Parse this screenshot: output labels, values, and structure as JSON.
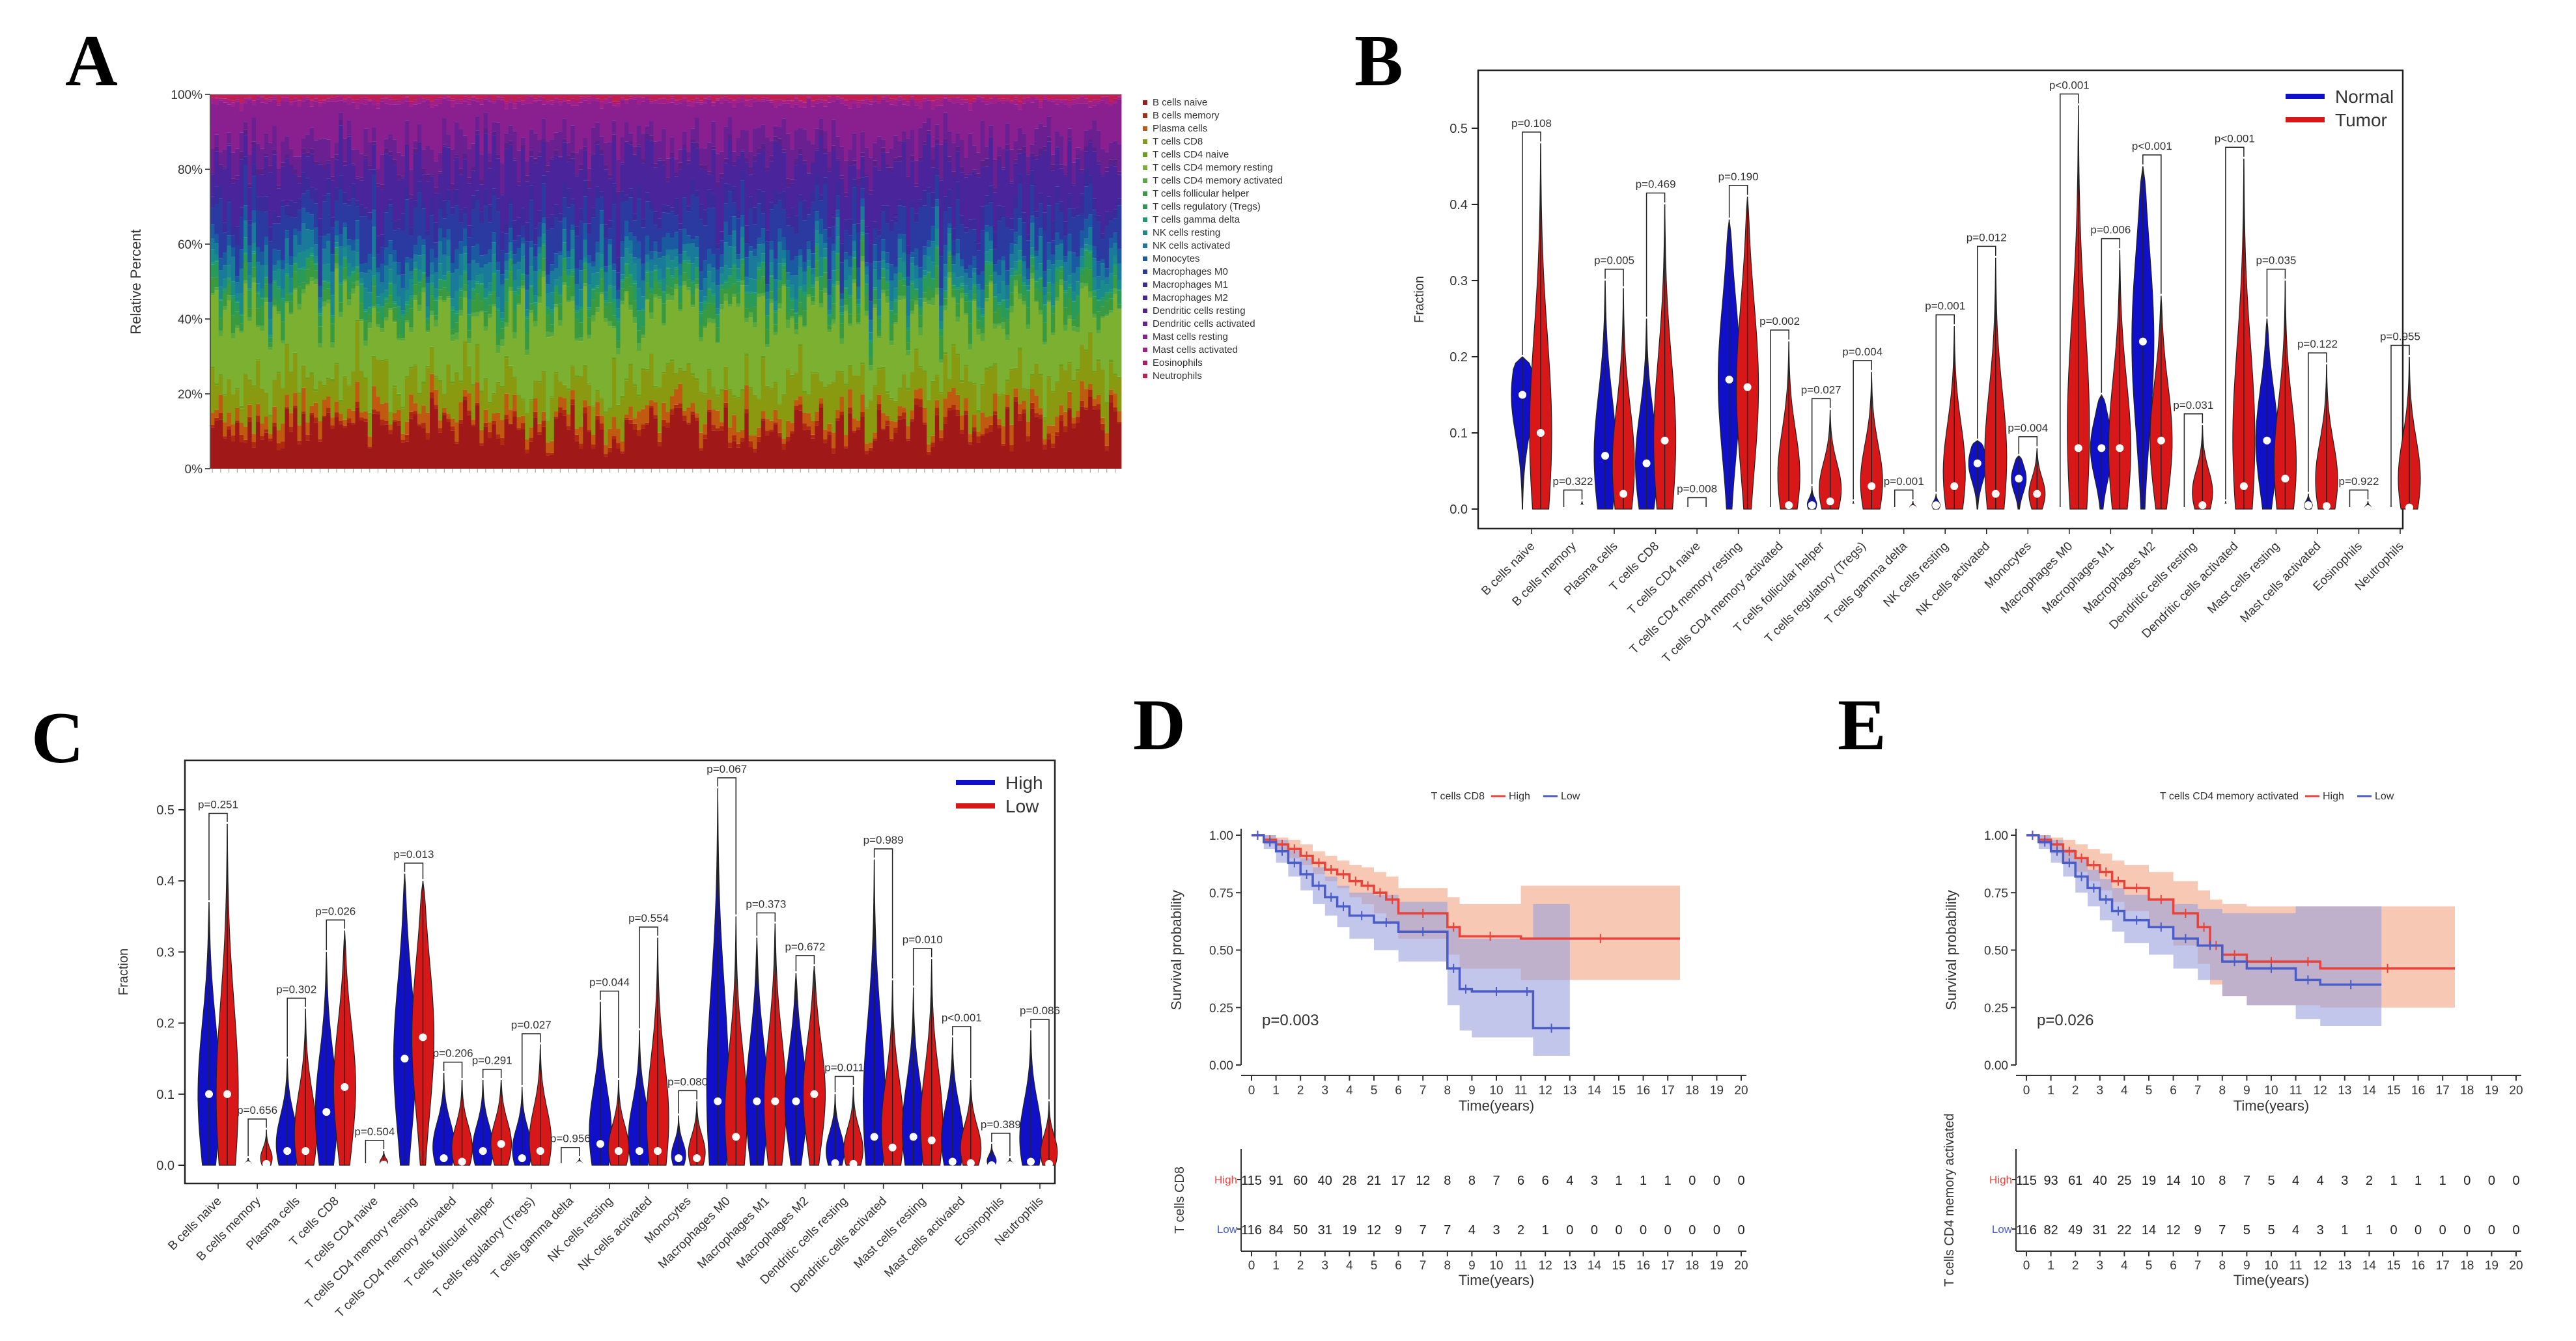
{
  "panel_labels": {
    "a": "A",
    "b": "B",
    "c": "C",
    "d": "D",
    "e": "E"
  },
  "colors": {
    "normal": "#1010c8",
    "tumor": "#d81818",
    "high": "#1010c8",
    "low": "#d81818",
    "km_high": "#e8433a",
    "km_low": "#4a5cc8",
    "km_high_ci": "#f2a380",
    "km_low_ci": "#9aa0dc",
    "cell_palette": [
      "#a01818",
      "#b02a10",
      "#c05a10",
      "#8a9a10",
      "#6aa018",
      "#7cb030",
      "#58a840",
      "#3a9a40",
      "#2a9a58",
      "#1a9a78",
      "#1a8a8a",
      "#1a7a9a",
      "#1a5aa0",
      "#2a3aa0",
      "#3a2a9a",
      "#4a249a",
      "#5a208a",
      "#6a2090",
      "#8a2090",
      "#a02088",
      "#b01870",
      "#c02050"
    ]
  },
  "chart_data": [
    {
      "id": "A",
      "type": "bar",
      "stacked": true,
      "ylabel": "Relative Percent",
      "yticks": [
        "0%",
        "20%",
        "40%",
        "60%",
        "80%",
        "100%"
      ],
      "n_samples": 220,
      "legend_position": "right",
      "legend": [
        "B cells naive",
        "B cells memory",
        "Plasma cells",
        "T cells CD8",
        "T cells CD4 naive",
        "T cells CD4 memory resting",
        "T cells CD4 memory activated",
        "T cells follicular helper",
        "T cells regulatory (Tregs)",
        "T cells gamma delta",
        "NK cells resting",
        "NK cells activated",
        "Monocytes",
        "Macrophages M0",
        "Macrophages M1",
        "Macrophages M2",
        "Dendritic cells resting",
        "Dendritic cells activated",
        "Mast cells resting",
        "Mast cells activated",
        "Eosinophils",
        "Neutrophils"
      ],
      "mean_fraction": [
        0.1,
        0.01,
        0.03,
        0.08,
        0.004,
        0.17,
        0.01,
        0.03,
        0.03,
        0.004,
        0.03,
        0.04,
        0.03,
        0.08,
        0.03,
        0.1,
        0.01,
        0.05,
        0.09,
        0.01,
        0.003,
        0.01
      ]
    },
    {
      "id": "B",
      "type": "violin",
      "ylabel": "Fraction",
      "ylim": [
        0,
        0.55
      ],
      "yticks": [
        0.0,
        0.1,
        0.2,
        0.3,
        0.4,
        0.5
      ],
      "legend_position": "top-right",
      "series_names": [
        "Normal",
        "Tumor"
      ],
      "categories": [
        "B cells naive",
        "B cells memory",
        "Plasma cells",
        "T cells CD8",
        "T cells CD4 naive",
        "T cells CD4 memory resting",
        "T cells CD4 memory activated",
        "T cells follicular helper",
        "T cells regulatory (Tregs)",
        "T cells gamma delta",
        "NK cells resting",
        "NK cells activated",
        "Monocytes",
        "Macrophages M0",
        "Macrophages M1",
        "Macrophages M2",
        "Dendritic cells resting",
        "Dendritic cells activated",
        "Mast cells resting",
        "Mast cells activated",
        "Eosinophils",
        "Neutrophils"
      ],
      "pvalues": [
        "p=0.108",
        "p=0.322",
        "p=0.005",
        "p=0.469",
        "p=0.008",
        "p=0.190",
        "p=0.002",
        "p=0.027",
        "p=0.004",
        "p=0.001",
        "p=0.001",
        "p=0.012",
        "p=0.004",
        "p<0.001",
        "p=0.006",
        "p<0.001",
        "p=0.031",
        "p<0.001",
        "p=0.035",
        "p=0.122",
        "p=0.922",
        "p=0.955"
      ],
      "max_a": [
        0.2,
        0.0,
        0.3,
        0.25,
        0.0,
        0.38,
        0.0,
        0.03,
        0.01,
        0.0,
        0.02,
        0.09,
        0.07,
        0.0,
        0.15,
        0.45,
        0.0,
        0.01,
        0.25,
        0.02,
        0.0,
        0.0
      ],
      "max_b": [
        0.48,
        0.01,
        0.29,
        0.4,
        0.0,
        0.41,
        0.22,
        0.13,
        0.18,
        0.01,
        0.24,
        0.33,
        0.08,
        0.53,
        0.34,
        0.28,
        0.11,
        0.46,
        0.3,
        0.19,
        0.01,
        0.2
      ],
      "median_a": [
        0.15,
        0.0,
        0.07,
        0.06,
        0.0,
        0.17,
        0.0,
        0.005,
        0.002,
        0.0,
        0.005,
        0.06,
        0.04,
        0.0,
        0.08,
        0.22,
        0.0,
        0.002,
        0.09,
        0.005,
        0.0,
        0.0
      ],
      "median_b": [
        0.1,
        0.001,
        0.02,
        0.09,
        0.0,
        0.16,
        0.005,
        0.01,
        0.03,
        0.0,
        0.03,
        0.02,
        0.02,
        0.08,
        0.08,
        0.09,
        0.005,
        0.03,
        0.04,
        0.004,
        0.0,
        0.002
      ]
    },
    {
      "id": "C",
      "type": "violin",
      "ylabel": "Fraction",
      "ylim": [
        0,
        0.55
      ],
      "yticks": [
        0.0,
        0.1,
        0.2,
        0.3,
        0.4,
        0.5
      ],
      "legend_position": "top-right",
      "series_names": [
        "High",
        "Low"
      ],
      "categories": [
        "B cells naive",
        "B cells memory",
        "Plasma cells",
        "T cells CD8",
        "T cells CD4 naive",
        "T cells CD4 memory resting",
        "T cells CD4 memory activated",
        "T cells follicular helper",
        "T cells regulatory (Tregs)",
        "T cells gamma delta",
        "NK cells resting",
        "NK cells activated",
        "Monocytes",
        "Macrophages M0",
        "Macrophages M1",
        "Macrophages M2",
        "Dendritic cells resting",
        "Dendritic cells activated",
        "Mast cells resting",
        "Mast cells activated",
        "Eosinophils",
        "Neutrophils"
      ],
      "pvalues": [
        "p=0.251",
        "p=0.656",
        "p=0.302",
        "p=0.026",
        "p=0.504",
        "p=0.013",
        "p=0.206",
        "p=0.291",
        "p=0.027",
        "p=0.956",
        "p=0.044",
        "p=0.554",
        "p=0.080",
        "p=0.067",
        "p=0.373",
        "p=0.672",
        "p=0.011",
        "p=0.989",
        "p=0.010",
        "p<0.001",
        "p=0.389",
        "p=0.086"
      ],
      "max_a": [
        0.37,
        0.01,
        0.15,
        0.3,
        0.0,
        0.41,
        0.13,
        0.12,
        0.11,
        0.0,
        0.23,
        0.19,
        0.07,
        0.53,
        0.32,
        0.27,
        0.1,
        0.43,
        0.25,
        0.18,
        0.03,
        0.19
      ],
      "max_b": [
        0.48,
        0.05,
        0.22,
        0.33,
        0.02,
        0.4,
        0.12,
        0.12,
        0.17,
        0.01,
        0.12,
        0.32,
        0.09,
        0.35,
        0.34,
        0.28,
        0.11,
        0.26,
        0.29,
        0.12,
        0.01,
        0.09
      ],
      "median_a": [
        0.1,
        0.0,
        0.02,
        0.075,
        0.0,
        0.15,
        0.01,
        0.02,
        0.01,
        0.0,
        0.03,
        0.02,
        0.01,
        0.09,
        0.09,
        0.09,
        0.003,
        0.04,
        0.04,
        0.005,
        0.0,
        0.005
      ],
      "median_b": [
        0.1,
        0.002,
        0.02,
        0.11,
        0.001,
        0.18,
        0.005,
        0.03,
        0.02,
        0.0,
        0.02,
        0.02,
        0.01,
        0.04,
        0.09,
        0.1,
        0.002,
        0.025,
        0.035,
        0.003,
        0.0,
        0.002
      ]
    },
    {
      "id": "D",
      "type": "line",
      "subtype": "kaplan-meier",
      "title": "T cells CD8",
      "legend": [
        "High",
        "Low"
      ],
      "xlabel": "Time(years)",
      "ylabel": "Survival probability",
      "xlim": [
        0,
        20
      ],
      "ylim": [
        0,
        1
      ],
      "yticks": [
        "0.00",
        "0.25",
        "0.50",
        "0.75",
        "1.00"
      ],
      "xticks": [
        0,
        1,
        2,
        3,
        4,
        5,
        6,
        7,
        8,
        9,
        10,
        11,
        12,
        13,
        14,
        15,
        16,
        17,
        18,
        19,
        20
      ],
      "pvalue": "p=0.003",
      "series": [
        {
          "name": "High",
          "x": [
            0,
            0.5,
            1,
            1.5,
            2,
            2.5,
            3,
            3.5,
            4,
            4.5,
            5,
            5.5,
            6,
            8,
            8.5,
            11,
            17.5
          ],
          "y": [
            1,
            0.98,
            0.96,
            0.94,
            0.91,
            0.88,
            0.85,
            0.83,
            0.8,
            0.78,
            0.75,
            0.72,
            0.66,
            0.6,
            0.56,
            0.55,
            0.55
          ],
          "ci_low": [
            1,
            0.96,
            0.93,
            0.9,
            0.87,
            0.83,
            0.8,
            0.77,
            0.73,
            0.7,
            0.66,
            0.62,
            0.55,
            0.48,
            0.42,
            0.37,
            0.37
          ],
          "ci_high": [
            1,
            1,
            0.99,
            0.98,
            0.96,
            0.93,
            0.91,
            0.89,
            0.87,
            0.86,
            0.84,
            0.82,
            0.77,
            0.73,
            0.7,
            0.78,
            0.78
          ]
        },
        {
          "name": "Low",
          "x": [
            0,
            0.5,
            1,
            1.5,
            2,
            2.5,
            3,
            3.5,
            4,
            5,
            6,
            8,
            8.5,
            9,
            11,
            11.5,
            13
          ],
          "y": [
            1,
            0.97,
            0.93,
            0.88,
            0.83,
            0.78,
            0.73,
            0.69,
            0.65,
            0.62,
            0.58,
            0.42,
            0.33,
            0.32,
            0.32,
            0.16,
            0.16
          ],
          "ci_low": [
            1,
            0.94,
            0.88,
            0.82,
            0.76,
            0.7,
            0.65,
            0.6,
            0.55,
            0.5,
            0.45,
            0.26,
            0.15,
            0.12,
            0.12,
            0.04,
            0.04
          ],
          "ci_high": [
            1,
            1,
            0.98,
            0.94,
            0.9,
            0.86,
            0.82,
            0.78,
            0.75,
            0.74,
            0.71,
            0.6,
            0.55,
            0.55,
            0.55,
            0.7,
            0.7
          ]
        }
      ],
      "risk_table": {
        "ylabel": "T cells CD8",
        "xlabel": "Time(years)",
        "rows": [
          {
            "label": "High",
            "counts": [
              115,
              91,
              60,
              40,
              28,
              21,
              17,
              12,
              8,
              8,
              7,
              6,
              6,
              4,
              3,
              1,
              1,
              1,
              0,
              0,
              0
            ]
          },
          {
            "label": "Low",
            "counts": [
              116,
              84,
              50,
              31,
              19,
              12,
              9,
              7,
              7,
              4,
              3,
              2,
              1,
              0,
              0,
              0,
              0,
              0,
              0,
              0,
              0
            ]
          }
        ]
      }
    },
    {
      "id": "E",
      "type": "line",
      "subtype": "kaplan-meier",
      "title": "T cells CD4 memory activated",
      "legend": [
        "High",
        "Low"
      ],
      "xlabel": "Time(years)",
      "ylabel": "Survival probability",
      "xlim": [
        0,
        20
      ],
      "ylim": [
        0,
        1
      ],
      "yticks": [
        "0.00",
        "0.25",
        "0.50",
        "0.75",
        "1.00"
      ],
      "xticks": [
        0,
        1,
        2,
        3,
        4,
        5,
        6,
        7,
        8,
        9,
        10,
        11,
        12,
        13,
        14,
        15,
        16,
        17,
        18,
        19,
        20
      ],
      "pvalue": "p=0.026",
      "series": [
        {
          "name": "High",
          "x": [
            0,
            0.5,
            1,
            1.5,
            2,
            2.5,
            3,
            3.5,
            4,
            5,
            6,
            7,
            7.5,
            8,
            9,
            11,
            12,
            17.5
          ],
          "y": [
            1,
            0.98,
            0.96,
            0.93,
            0.9,
            0.87,
            0.84,
            0.8,
            0.77,
            0.72,
            0.66,
            0.6,
            0.52,
            0.48,
            0.45,
            0.45,
            0.42,
            0.42
          ],
          "ci_low": [
            1,
            0.96,
            0.92,
            0.88,
            0.84,
            0.8,
            0.76,
            0.71,
            0.67,
            0.6,
            0.52,
            0.44,
            0.35,
            0.3,
            0.26,
            0.26,
            0.25,
            0.25
          ],
          "ci_high": [
            1,
            1,
            0.99,
            0.98,
            0.96,
            0.94,
            0.92,
            0.89,
            0.87,
            0.84,
            0.8,
            0.76,
            0.72,
            0.7,
            0.69,
            0.69,
            0.69,
            0.69
          ]
        },
        {
          "name": "Low",
          "x": [
            0,
            0.5,
            1,
            1.5,
            2,
            2.5,
            3,
            3.5,
            4,
            5,
            6,
            7,
            8,
            9,
            11,
            12,
            14.5
          ],
          "y": [
            1,
            0.97,
            0.93,
            0.88,
            0.82,
            0.77,
            0.72,
            0.67,
            0.63,
            0.6,
            0.55,
            0.52,
            0.45,
            0.42,
            0.37,
            0.35,
            0.35
          ],
          "ci_low": [
            1,
            0.94,
            0.88,
            0.82,
            0.75,
            0.69,
            0.63,
            0.58,
            0.53,
            0.48,
            0.42,
            0.37,
            0.3,
            0.26,
            0.2,
            0.17,
            0.17
          ],
          "ci_high": [
            1,
            1,
            0.98,
            0.94,
            0.9,
            0.85,
            0.81,
            0.77,
            0.74,
            0.72,
            0.7,
            0.68,
            0.66,
            0.66,
            0.69,
            0.69,
            0.69
          ]
        }
      ],
      "risk_table": {
        "ylabel": "T cells CD4 memory activated",
        "xlabel": "Time(years)",
        "rows": [
          {
            "label": "High",
            "counts": [
              115,
              93,
              61,
              40,
              25,
              19,
              14,
              10,
              8,
              7,
              5,
              4,
              4,
              3,
              2,
              1,
              1,
              1,
              0,
              0,
              0
            ]
          },
          {
            "label": "Low",
            "counts": [
              116,
              82,
              49,
              31,
              22,
              14,
              12,
              9,
              7,
              5,
              5,
              4,
              3,
              1,
              1,
              0,
              0,
              0,
              0,
              0,
              0
            ]
          }
        ]
      }
    }
  ]
}
